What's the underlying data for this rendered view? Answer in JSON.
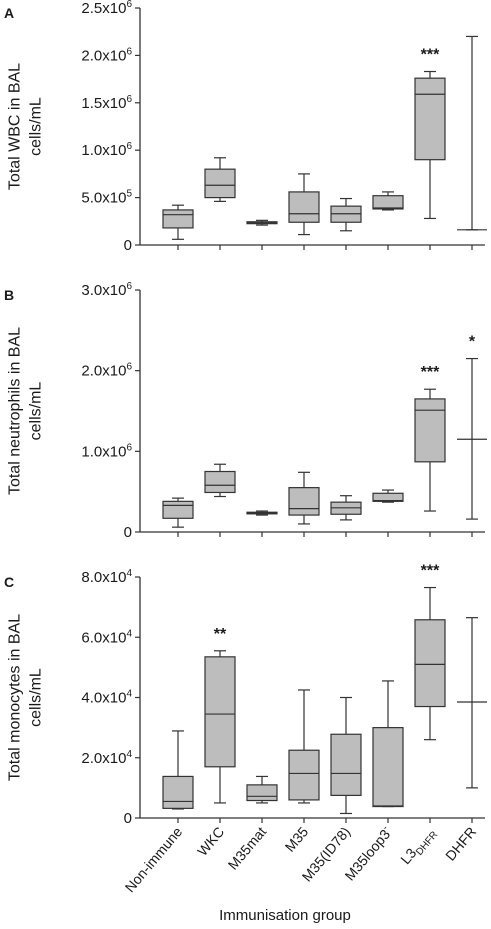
{
  "x_axis_title": "Immunisation group",
  "categories": [
    {
      "main": "Non-immune",
      "sub": "",
      "sup": ""
    },
    {
      "main": "WKC",
      "sub": "",
      "sup": ""
    },
    {
      "main": "M35mat",
      "sub": "",
      "sup": ""
    },
    {
      "main": "M35",
      "sub": "",
      "sup": ""
    },
    {
      "main": "M35(ID78)",
      "sub": "",
      "sup": ""
    },
    {
      "main": "M35loop3",
      "sub": "",
      "sup": "-"
    },
    {
      "main": "L3",
      "sub": "DHFR",
      "sup": ""
    },
    {
      "main": "DHFR",
      "sub": "",
      "sup": ""
    }
  ],
  "colors": {
    "box_fill": "#bdbdbd",
    "stroke": "#333333"
  },
  "chart_data": [
    {
      "type": "box",
      "panel_letter": "A",
      "ylabel_lines": [
        "Total WBC in BAL",
        "cells/mL"
      ],
      "ylim": [
        0,
        2500000
      ],
      "yticks": [
        {
          "value": 0,
          "mant": "0",
          "exp": ""
        },
        {
          "value": 500000,
          "mant": "5.0x10",
          "exp": "5"
        },
        {
          "value": 1000000,
          "mant": "1.0x10",
          "exp": "6"
        },
        {
          "value": 1500000,
          "mant": "1.5x10",
          "exp": "6"
        },
        {
          "value": 2000000,
          "mant": "2.0x10",
          "exp": "6"
        },
        {
          "value": 2500000,
          "mant": "2.5x10",
          "exp": "6"
        }
      ],
      "boxes": [
        {
          "min": 60000,
          "q1": 180000,
          "median": 320000,
          "q3": 370000,
          "max": 420000,
          "show_box": true,
          "sig": ""
        },
        {
          "min": 460000,
          "q1": 500000,
          "median": 630000,
          "q3": 800000,
          "max": 920000,
          "show_box": true,
          "sig": ""
        },
        {
          "min": 210000,
          "q1": 225000,
          "median": 235000,
          "q3": 245000,
          "max": 260000,
          "show_box": true,
          "sig": ""
        },
        {
          "min": 110000,
          "q1": 240000,
          "median": 330000,
          "q3": 560000,
          "max": 750000,
          "show_box": true,
          "sig": ""
        },
        {
          "min": 150000,
          "q1": 240000,
          "median": 330000,
          "q3": 410000,
          "max": 490000,
          "show_box": true,
          "sig": ""
        },
        {
          "min": 370000,
          "q1": 380000,
          "median": 390000,
          "q3": 520000,
          "max": 560000,
          "show_box": true,
          "sig": ""
        },
        {
          "min": 280000,
          "q1": 900000,
          "median": 1590000,
          "q3": 1760000,
          "max": 1830000,
          "show_box": true,
          "sig": "***"
        },
        {
          "min": 160000,
          "q1": 160000,
          "median": 160000,
          "q3": 2200000,
          "max": 2200000,
          "show_box": false,
          "sig": ""
        }
      ]
    },
    {
      "type": "box",
      "panel_letter": "B",
      "ylabel_lines": [
        "Total neutrophils in BAL",
        "cells/mL"
      ],
      "ylim": [
        0,
        3000000
      ],
      "yticks": [
        {
          "value": 0,
          "mant": "0",
          "exp": ""
        },
        {
          "value": 1000000,
          "mant": "1.0x10",
          "exp": "6"
        },
        {
          "value": 2000000,
          "mant": "2.0x10",
          "exp": "6"
        },
        {
          "value": 3000000,
          "mant": "3.0x10",
          "exp": "6"
        }
      ],
      "boxes": [
        {
          "min": 60000,
          "q1": 170000,
          "median": 330000,
          "q3": 380000,
          "max": 420000,
          "show_box": true,
          "sig": ""
        },
        {
          "min": 440000,
          "q1": 490000,
          "median": 580000,
          "q3": 750000,
          "max": 840000,
          "show_box": true,
          "sig": ""
        },
        {
          "min": 210000,
          "q1": 225000,
          "median": 235000,
          "q3": 245000,
          "max": 260000,
          "show_box": true,
          "sig": ""
        },
        {
          "min": 100000,
          "q1": 210000,
          "median": 290000,
          "q3": 550000,
          "max": 740000,
          "show_box": true,
          "sig": ""
        },
        {
          "min": 150000,
          "q1": 220000,
          "median": 300000,
          "q3": 370000,
          "max": 450000,
          "show_box": true,
          "sig": ""
        },
        {
          "min": 370000,
          "q1": 380000,
          "median": 390000,
          "q3": 480000,
          "max": 520000,
          "show_box": true,
          "sig": ""
        },
        {
          "min": 260000,
          "q1": 870000,
          "median": 1510000,
          "q3": 1650000,
          "max": 1770000,
          "show_box": true,
          "sig": "***"
        },
        {
          "min": 160000,
          "q1": 1150000,
          "median": 1150000,
          "q3": 1150000,
          "max": 2150000,
          "show_box": false,
          "sig": "*"
        }
      ]
    },
    {
      "type": "box",
      "panel_letter": "C",
      "ylabel_lines": [
        "Total monocytes in BAL",
        "cells/mL"
      ],
      "ylim": [
        0,
        80000
      ],
      "yticks": [
        {
          "value": 0,
          "mant": "0",
          "exp": ""
        },
        {
          "value": 20000,
          "mant": "2.0x10",
          "exp": "4"
        },
        {
          "value": 40000,
          "mant": "4.0x10",
          "exp": "4"
        },
        {
          "value": 60000,
          "mant": "6.0x10",
          "exp": "4"
        },
        {
          "value": 80000,
          "mant": "8.0x10",
          "exp": "4"
        }
      ],
      "boxes": [
        {
          "min": 3000,
          "q1": 3200,
          "median": 5500,
          "q3": 13800,
          "max": 28900,
          "show_box": true,
          "sig": ""
        },
        {
          "min": 5000,
          "q1": 17000,
          "median": 34500,
          "q3": 53500,
          "max": 55500,
          "show_box": true,
          "sig": "**"
        },
        {
          "min": 5000,
          "q1": 5800,
          "median": 7200,
          "q3": 11000,
          "max": 13800,
          "show_box": true,
          "sig": ""
        },
        {
          "min": 5000,
          "q1": 6000,
          "median": 14800,
          "q3": 22500,
          "max": 42500,
          "show_box": true,
          "sig": ""
        },
        {
          "min": 1500,
          "q1": 7500,
          "median": 14800,
          "q3": 27800,
          "max": 40000,
          "show_box": true,
          "sig": ""
        },
        {
          "min": 3800,
          "q1": 3800,
          "median": 4000,
          "q3": 30000,
          "max": 45500,
          "show_box": true,
          "sig": ""
        },
        {
          "min": 26000,
          "q1": 37000,
          "median": 51000,
          "q3": 65800,
          "max": 76500,
          "show_box": true,
          "sig": "***"
        },
        {
          "min": 10000,
          "q1": 38500,
          "median": 38500,
          "q3": 38500,
          "max": 66500,
          "show_box": false,
          "sig": ""
        }
      ]
    }
  ]
}
